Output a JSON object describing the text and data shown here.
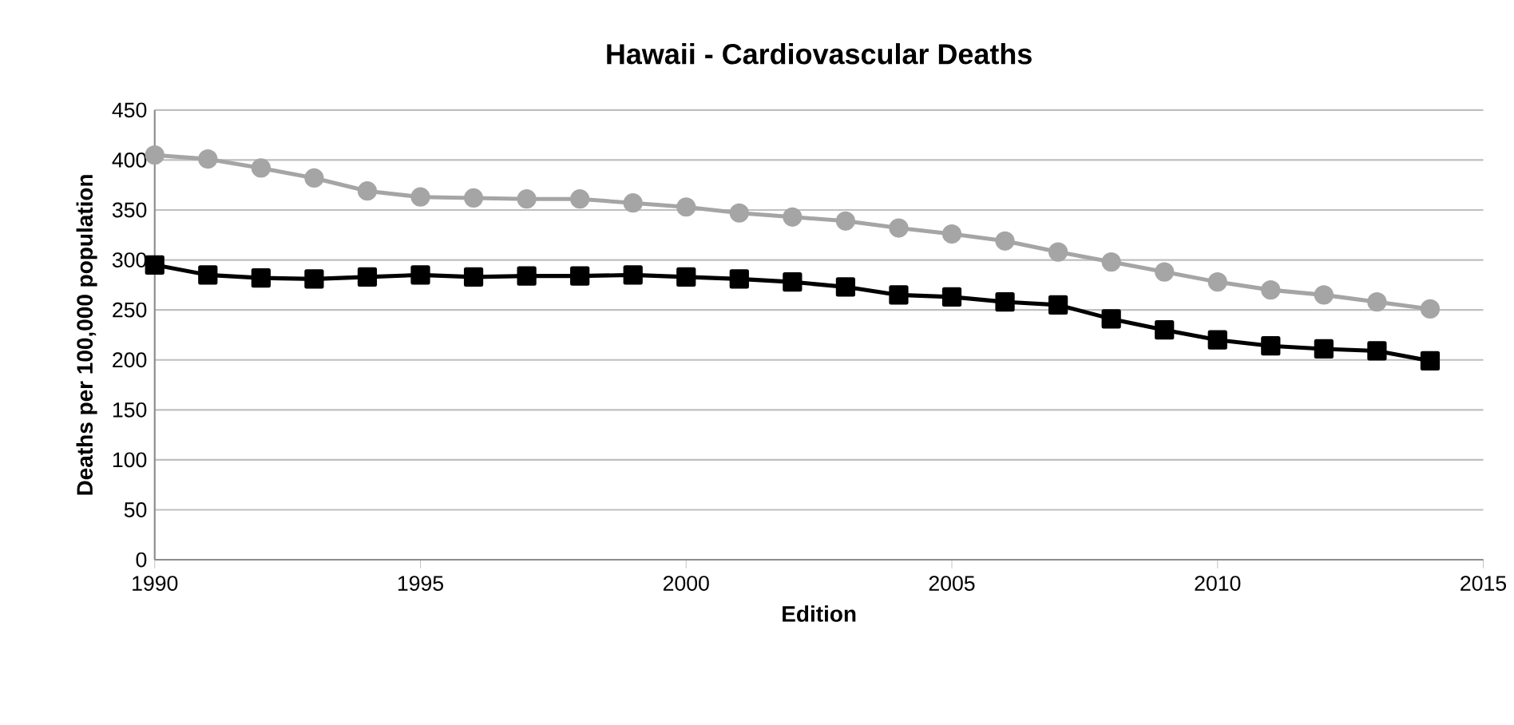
{
  "chart_data": {
    "type": "line",
    "title": "Hawaii - Cardiovascular Deaths",
    "xlabel": "Edition",
    "ylabel": "Deaths per 100,000 population",
    "x": [
      1990,
      1991,
      1992,
      1993,
      1994,
      1995,
      1996,
      1997,
      1998,
      1999,
      2000,
      2001,
      2002,
      2003,
      2004,
      2005,
      2006,
      2007,
      2008,
      2009,
      2010,
      2011,
      2012,
      2013,
      2014
    ],
    "series": [
      {
        "color": "#a5a5a5",
        "marker": "circle",
        "values": [
          405,
          401,
          392,
          382,
          369,
          363,
          362,
          361,
          361,
          357,
          353,
          347,
          343,
          339,
          332,
          326,
          319,
          308,
          298,
          288,
          278,
          270,
          265,
          258,
          251
        ]
      },
      {
        "color": "#000000",
        "marker": "square",
        "values": [
          295,
          285,
          282,
          281,
          283,
          285,
          283,
          284,
          284,
          285,
          283,
          281,
          278,
          273,
          265,
          263,
          258,
          255,
          241,
          230,
          220,
          214,
          211,
          209,
          199
        ]
      }
    ],
    "xlim": [
      1990,
      2015
    ],
    "xticks": [
      1990,
      1995,
      2000,
      2005,
      2010,
      2015
    ],
    "ylim": [
      0,
      450
    ],
    "yticks": [
      0,
      50,
      100,
      150,
      200,
      250,
      300,
      350,
      400,
      450
    ],
    "grid": "y",
    "line_style": "solid"
  }
}
